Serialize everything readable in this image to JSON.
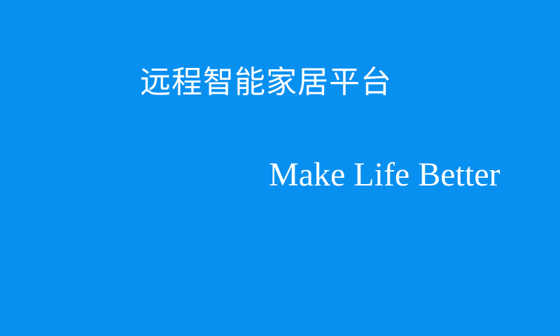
{
  "splash": {
    "title": "远程智能家居平台",
    "slogan": "Make Life Better",
    "background_color": "#0890f0",
    "text_color": "#ffffff"
  }
}
